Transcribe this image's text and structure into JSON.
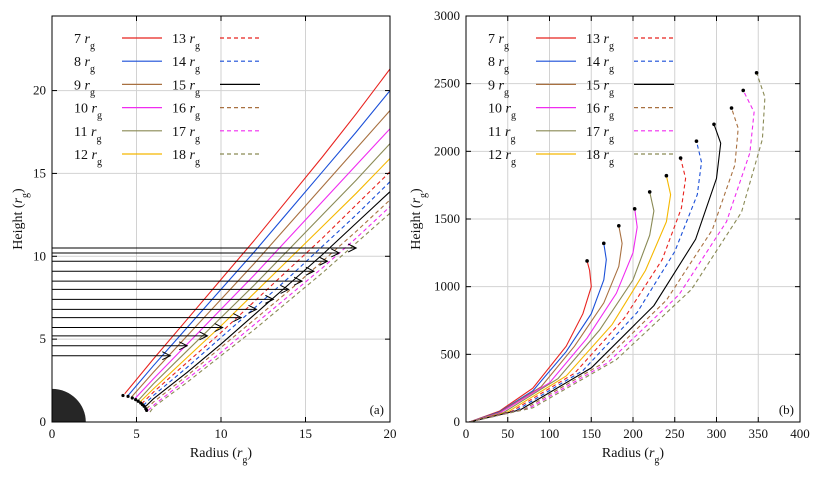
{
  "chart_data": [
    {
      "panel": "(a)",
      "type": "line",
      "xlabel": "Radius",
      "ylabel": "Height",
      "unit": "r",
      "unit_sub": "g",
      "xlim": [
        0,
        20
      ],
      "ylim": [
        0,
        24.5
      ],
      "xticks": [
        0,
        5,
        10,
        15,
        20
      ],
      "yticks": [
        0,
        5,
        10,
        15,
        20
      ],
      "grid": true,
      "legend_position": "top-left",
      "black_hole_radius": 2,
      "series": [
        {
          "name": "7",
          "color": "#e8231f",
          "dash": false,
          "x": [
            4.3,
            6,
            8,
            10,
            12,
            14,
            16,
            18,
            20
          ],
          "y": [
            1.7,
            3.8,
            6.2,
            8.6,
            11.0,
            13.5,
            16.0,
            18.6,
            21.3
          ]
        },
        {
          "name": "8",
          "color": "#1a4fd8",
          "dash": false,
          "x": [
            4.5,
            6,
            8,
            10,
            12,
            14,
            16,
            18,
            20
          ],
          "y": [
            1.6,
            3.4,
            5.7,
            8.0,
            10.3,
            12.7,
            15.1,
            17.5,
            20.0
          ]
        },
        {
          "name": "9",
          "color": "#a87040",
          "dash": false,
          "x": [
            4.7,
            6,
            8,
            10,
            12,
            14,
            16,
            18,
            20
          ],
          "y": [
            1.5,
            3.0,
            5.2,
            7.4,
            9.6,
            11.9,
            14.2,
            16.5,
            18.8
          ]
        },
        {
          "name": "10",
          "color": "#f02cf0",
          "dash": false,
          "x": [
            4.9,
            6,
            8,
            10,
            12,
            14,
            16,
            18,
            20
          ],
          "y": [
            1.4,
            2.6,
            4.7,
            6.8,
            8.9,
            11.1,
            13.3,
            15.5,
            17.7
          ]
        },
        {
          "name": "11",
          "color": "#8a8a55",
          "dash": false,
          "x": [
            5.1,
            6,
            8,
            10,
            12,
            14,
            16,
            18,
            20
          ],
          "y": [
            1.3,
            2.3,
            4.3,
            6.3,
            8.3,
            10.4,
            12.5,
            14.6,
            16.8
          ]
        },
        {
          "name": "12",
          "color": "#f5b800",
          "dash": false,
          "x": [
            5.2,
            6,
            8,
            10,
            12,
            14,
            16,
            18,
            20
          ],
          "y": [
            1.2,
            2.0,
            3.9,
            5.8,
            7.8,
            9.8,
            11.8,
            13.8,
            15.9
          ]
        },
        {
          "name": "13",
          "color": "#e8231f",
          "dash": true,
          "x": [
            5.3,
            6,
            8,
            10,
            12,
            14,
            16,
            18,
            20
          ],
          "y": [
            1.1,
            1.8,
            3.6,
            5.4,
            7.3,
            9.2,
            11.1,
            13.1,
            15.1
          ]
        },
        {
          "name": "14",
          "color": "#1a4fd8",
          "dash": true,
          "x": [
            5.4,
            6,
            8,
            10,
            12,
            14,
            16,
            18,
            20
          ],
          "y": [
            1.0,
            1.6,
            3.3,
            5.1,
            6.9,
            8.7,
            10.6,
            12.5,
            14.5
          ]
        },
        {
          "name": "15",
          "color": "#000000",
          "dash": false,
          "x": [
            5.5,
            6,
            8,
            10,
            12,
            14,
            16,
            18,
            20
          ],
          "y": [
            0.9,
            1.4,
            3.0,
            4.7,
            6.5,
            8.3,
            10.1,
            12.0,
            13.9
          ]
        },
        {
          "name": "16",
          "color": "#a87040",
          "dash": true,
          "x": [
            5.6,
            6,
            8,
            10,
            12,
            14,
            16,
            18,
            20
          ],
          "y": [
            0.8,
            1.2,
            2.8,
            4.5,
            6.2,
            7.9,
            9.7,
            11.5,
            13.4
          ]
        },
        {
          "name": "17",
          "color": "#f02cf0",
          "dash": true,
          "x": [
            5.7,
            6,
            8,
            10,
            12,
            14,
            16,
            18,
            20
          ],
          "y": [
            0.7,
            1.0,
            2.6,
            4.2,
            5.9,
            7.6,
            9.3,
            11.1,
            13.0
          ]
        },
        {
          "name": "18",
          "color": "#8a8a55",
          "dash": true,
          "x": [
            5.8,
            6,
            8,
            10,
            12,
            14,
            16,
            18,
            20
          ],
          "y": [
            0.6,
            0.9,
            2.4,
            4.0,
            5.6,
            7.3,
            9.0,
            10.8,
            12.6
          ]
        }
      ],
      "launch_points": [
        [
          4.2,
          1.6
        ],
        [
          4.5,
          1.55
        ],
        [
          4.75,
          1.45
        ],
        [
          4.95,
          1.35
        ],
        [
          5.1,
          1.25
        ],
        [
          5.25,
          1.15
        ],
        [
          5.35,
          1.05
        ],
        [
          5.45,
          0.95
        ],
        [
          5.55,
          0.8
        ],
        [
          5.6,
          0.7
        ]
      ],
      "arrows": [
        {
          "y": 4.0,
          "x_end": 7.0
        },
        {
          "y": 4.6,
          "x_end": 8.0
        },
        {
          "y": 5.2,
          "x_end": 9.2
        },
        {
          "y": 5.7,
          "x_end": 10.1
        },
        {
          "y": 6.3,
          "x_end": 11.2
        },
        {
          "y": 6.8,
          "x_end": 12.1
        },
        {
          "y": 7.4,
          "x_end": 13.1
        },
        {
          "y": 8.0,
          "x_end": 14.0
        },
        {
          "y": 8.5,
          "x_end": 14.8
        },
        {
          "y": 9.1,
          "x_end": 15.5
        },
        {
          "y": 9.7,
          "x_end": 16.3
        },
        {
          "y": 10.2,
          "x_end": 17.0
        },
        {
          "y": 10.5,
          "x_end": 18.0
        }
      ]
    },
    {
      "panel": "(b)",
      "type": "line",
      "xlabel": "Radius",
      "ylabel": "Height",
      "unit": "r",
      "unit_sub": "g",
      "xlim": [
        0,
        400
      ],
      "ylim": [
        0,
        3000
      ],
      "xticks": [
        0,
        50,
        100,
        150,
        200,
        250,
        300,
        350,
        400
      ],
      "yticks": [
        0,
        500,
        1000,
        1500,
        2000,
        2500,
        3000
      ],
      "grid": true,
      "legend_position": "top-left",
      "series": [
        {
          "name": "7",
          "color": "#e8231f",
          "dash": false,
          "x": [
            4,
            40,
            80,
            120,
            140,
            150,
            148,
            145
          ],
          "y": [
            0,
            80,
            250,
            560,
            800,
            1000,
            1120,
            1190
          ]
        },
        {
          "name": "8",
          "color": "#1a4fd8",
          "dash": false,
          "x": [
            4,
            40,
            80,
            120,
            150,
            165,
            168,
            165
          ],
          "y": [
            0,
            75,
            230,
            520,
            800,
            1050,
            1200,
            1320
          ]
        },
        {
          "name": "9",
          "color": "#a87040",
          "dash": false,
          "x": [
            4,
            40,
            90,
            130,
            165,
            183,
            187,
            183
          ],
          "y": [
            0,
            70,
            260,
            560,
            880,
            1150,
            1320,
            1450
          ]
        },
        {
          "name": "10",
          "color": "#f02cf0",
          "dash": false,
          "x": [
            4,
            40,
            100,
            145,
            180,
            200,
            205,
            202
          ],
          "y": [
            0,
            65,
            290,
            620,
            950,
            1250,
            1440,
            1575
          ]
        },
        {
          "name": "11",
          "color": "#8a8a55",
          "dash": false,
          "x": [
            4,
            45,
            110,
            160,
            200,
            220,
            225,
            220
          ],
          "y": [
            0,
            70,
            320,
            680,
            1050,
            1380,
            1560,
            1700
          ]
        },
        {
          "name": "12",
          "color": "#f5b800",
          "dash": false,
          "x": [
            4,
            50,
            120,
            175,
            215,
            240,
            245,
            240
          ],
          "y": [
            0,
            75,
            340,
            720,
            1120,
            1480,
            1680,
            1820
          ]
        },
        {
          "name": "13",
          "color": "#e8231f",
          "dash": true,
          "x": [
            4,
            55,
            130,
            190,
            235,
            258,
            263,
            257
          ],
          "y": [
            0,
            80,
            360,
            770,
            1200,
            1580,
            1800,
            1950
          ]
        },
        {
          "name": "14",
          "color": "#1a4fd8",
          "dash": true,
          "x": [
            4,
            60,
            140,
            205,
            250,
            277,
            282,
            276
          ],
          "y": [
            0,
            85,
            380,
            810,
            1260,
            1680,
            1920,
            2075
          ]
        },
        {
          "name": "15",
          "color": "#000000",
          "dash": false,
          "x": [
            4,
            65,
            150,
            225,
            275,
            300,
            305,
            297
          ],
          "y": [
            0,
            90,
            400,
            860,
            1350,
            1800,
            2060,
            2200
          ]
        },
        {
          "name": "16",
          "color": "#a87040",
          "dash": true,
          "x": [
            4,
            70,
            160,
            240,
            295,
            322,
            326,
            318
          ],
          "y": [
            0,
            95,
            420,
            900,
            1420,
            1900,
            2170,
            2320
          ]
        },
        {
          "name": "17",
          "color": "#f02cf0",
          "dash": true,
          "x": [
            4,
            75,
            170,
            255,
            312,
            340,
            345,
            332
          ],
          "y": [
            0,
            100,
            440,
            940,
            1480,
            1990,
            2290,
            2450
          ]
        },
        {
          "name": "18",
          "color": "#8a8a55",
          "dash": true,
          "x": [
            4,
            80,
            180,
            270,
            330,
            355,
            358,
            348
          ],
          "y": [
            0,
            105,
            460,
            980,
            1550,
            2090,
            2400,
            2580
          ]
        }
      ]
    }
  ],
  "panels": {
    "a": {
      "label": "(a)",
      "xlabel": "Radius",
      "ylabel": "Height"
    },
    "b": {
      "label": "(b)",
      "xlabel": "Radius",
      "ylabel": "Height"
    }
  },
  "legend": {
    "unit": "r",
    "unit_sub": "g"
  }
}
